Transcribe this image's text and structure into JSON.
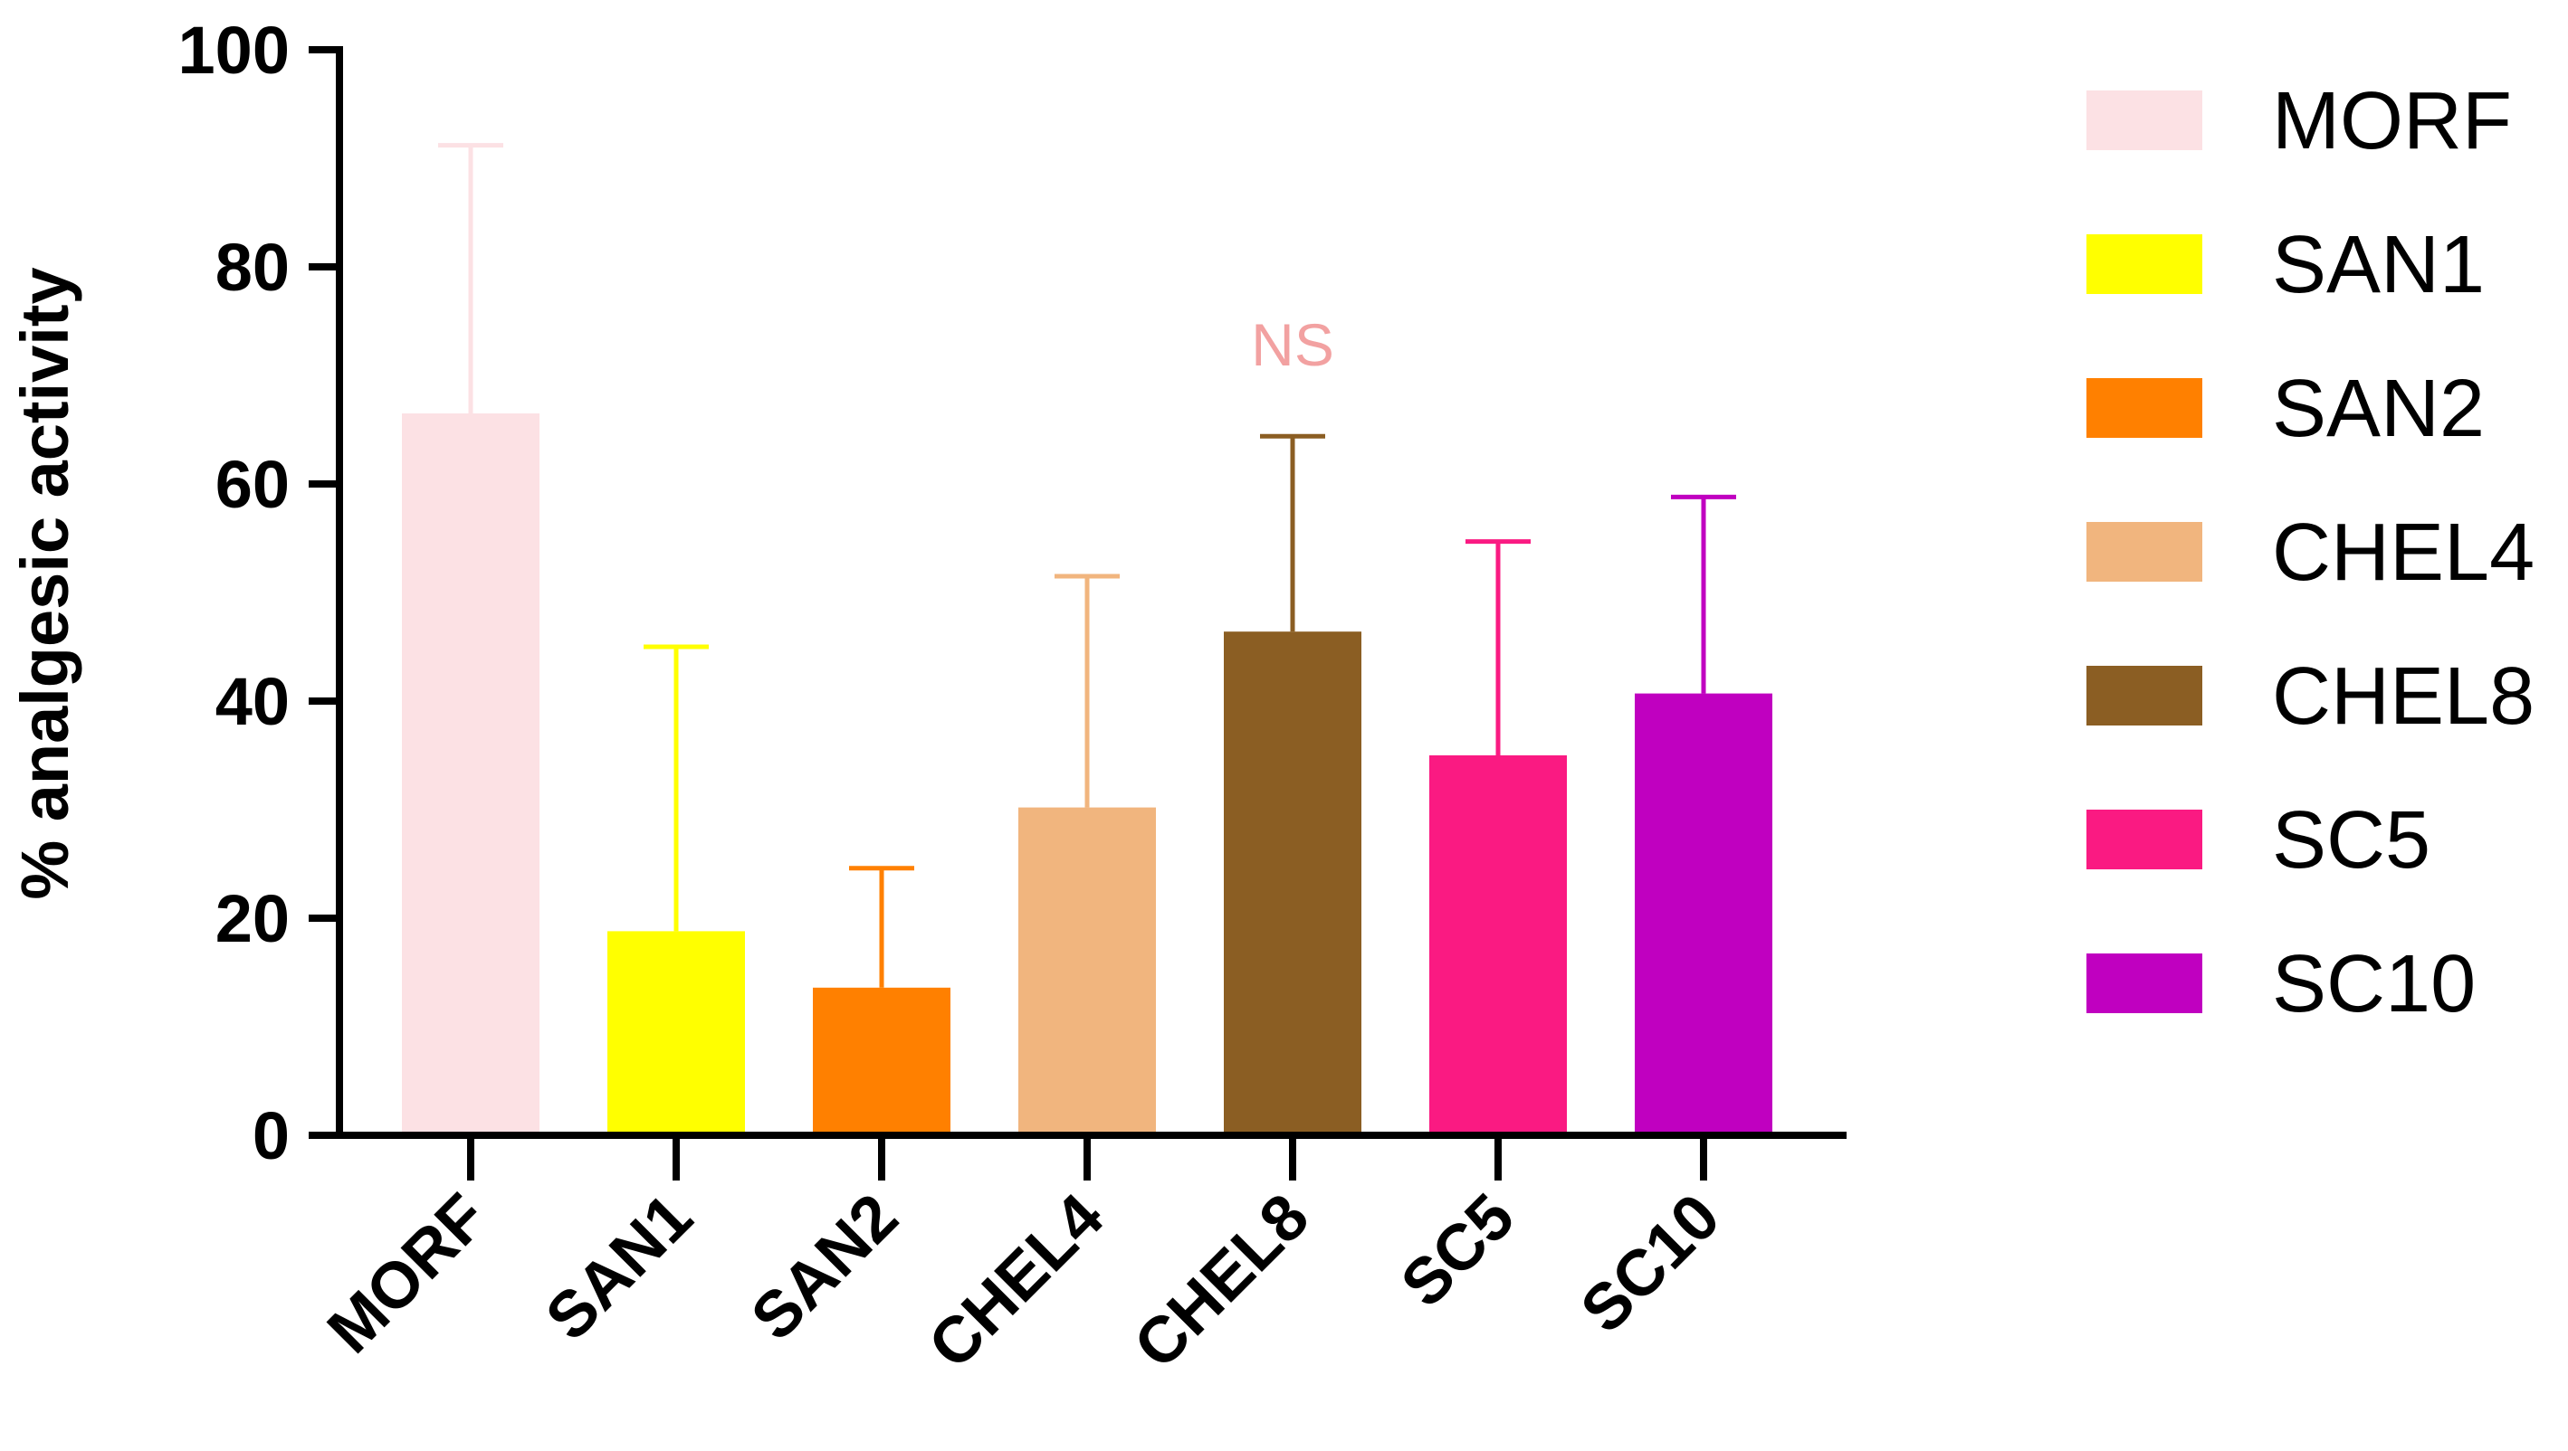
{
  "chart_data": {
    "type": "bar",
    "title": "",
    "xlabel": "",
    "ylabel": "% analgesic activity",
    "ylim": [
      0,
      100
    ],
    "yticks": [
      "0",
      "20",
      "40",
      "60",
      "80",
      "100"
    ],
    "categories": [
      "MORF",
      "SAN1",
      "SAN2",
      "CHEL4",
      "CHEL8",
      "SC5",
      "SC10"
    ],
    "values": [
      66.5,
      18.8,
      13.6,
      30.2,
      46.4,
      35.0,
      40.7
    ],
    "error_upper": [
      24.7,
      26.2,
      11.0,
      21.3,
      18.0,
      19.7,
      18.1
    ],
    "colors": [
      "#FCE1E4",
      "#FFFF00",
      "#FF8000",
      "#F1B57E",
      "#8B5E23",
      "#FA1A82",
      "#C000C0"
    ],
    "legend_position": "right",
    "grid": false,
    "annotations": [
      {
        "text": "NS",
        "category": "CHEL8",
        "color": "#F2A1A1"
      }
    ]
  }
}
